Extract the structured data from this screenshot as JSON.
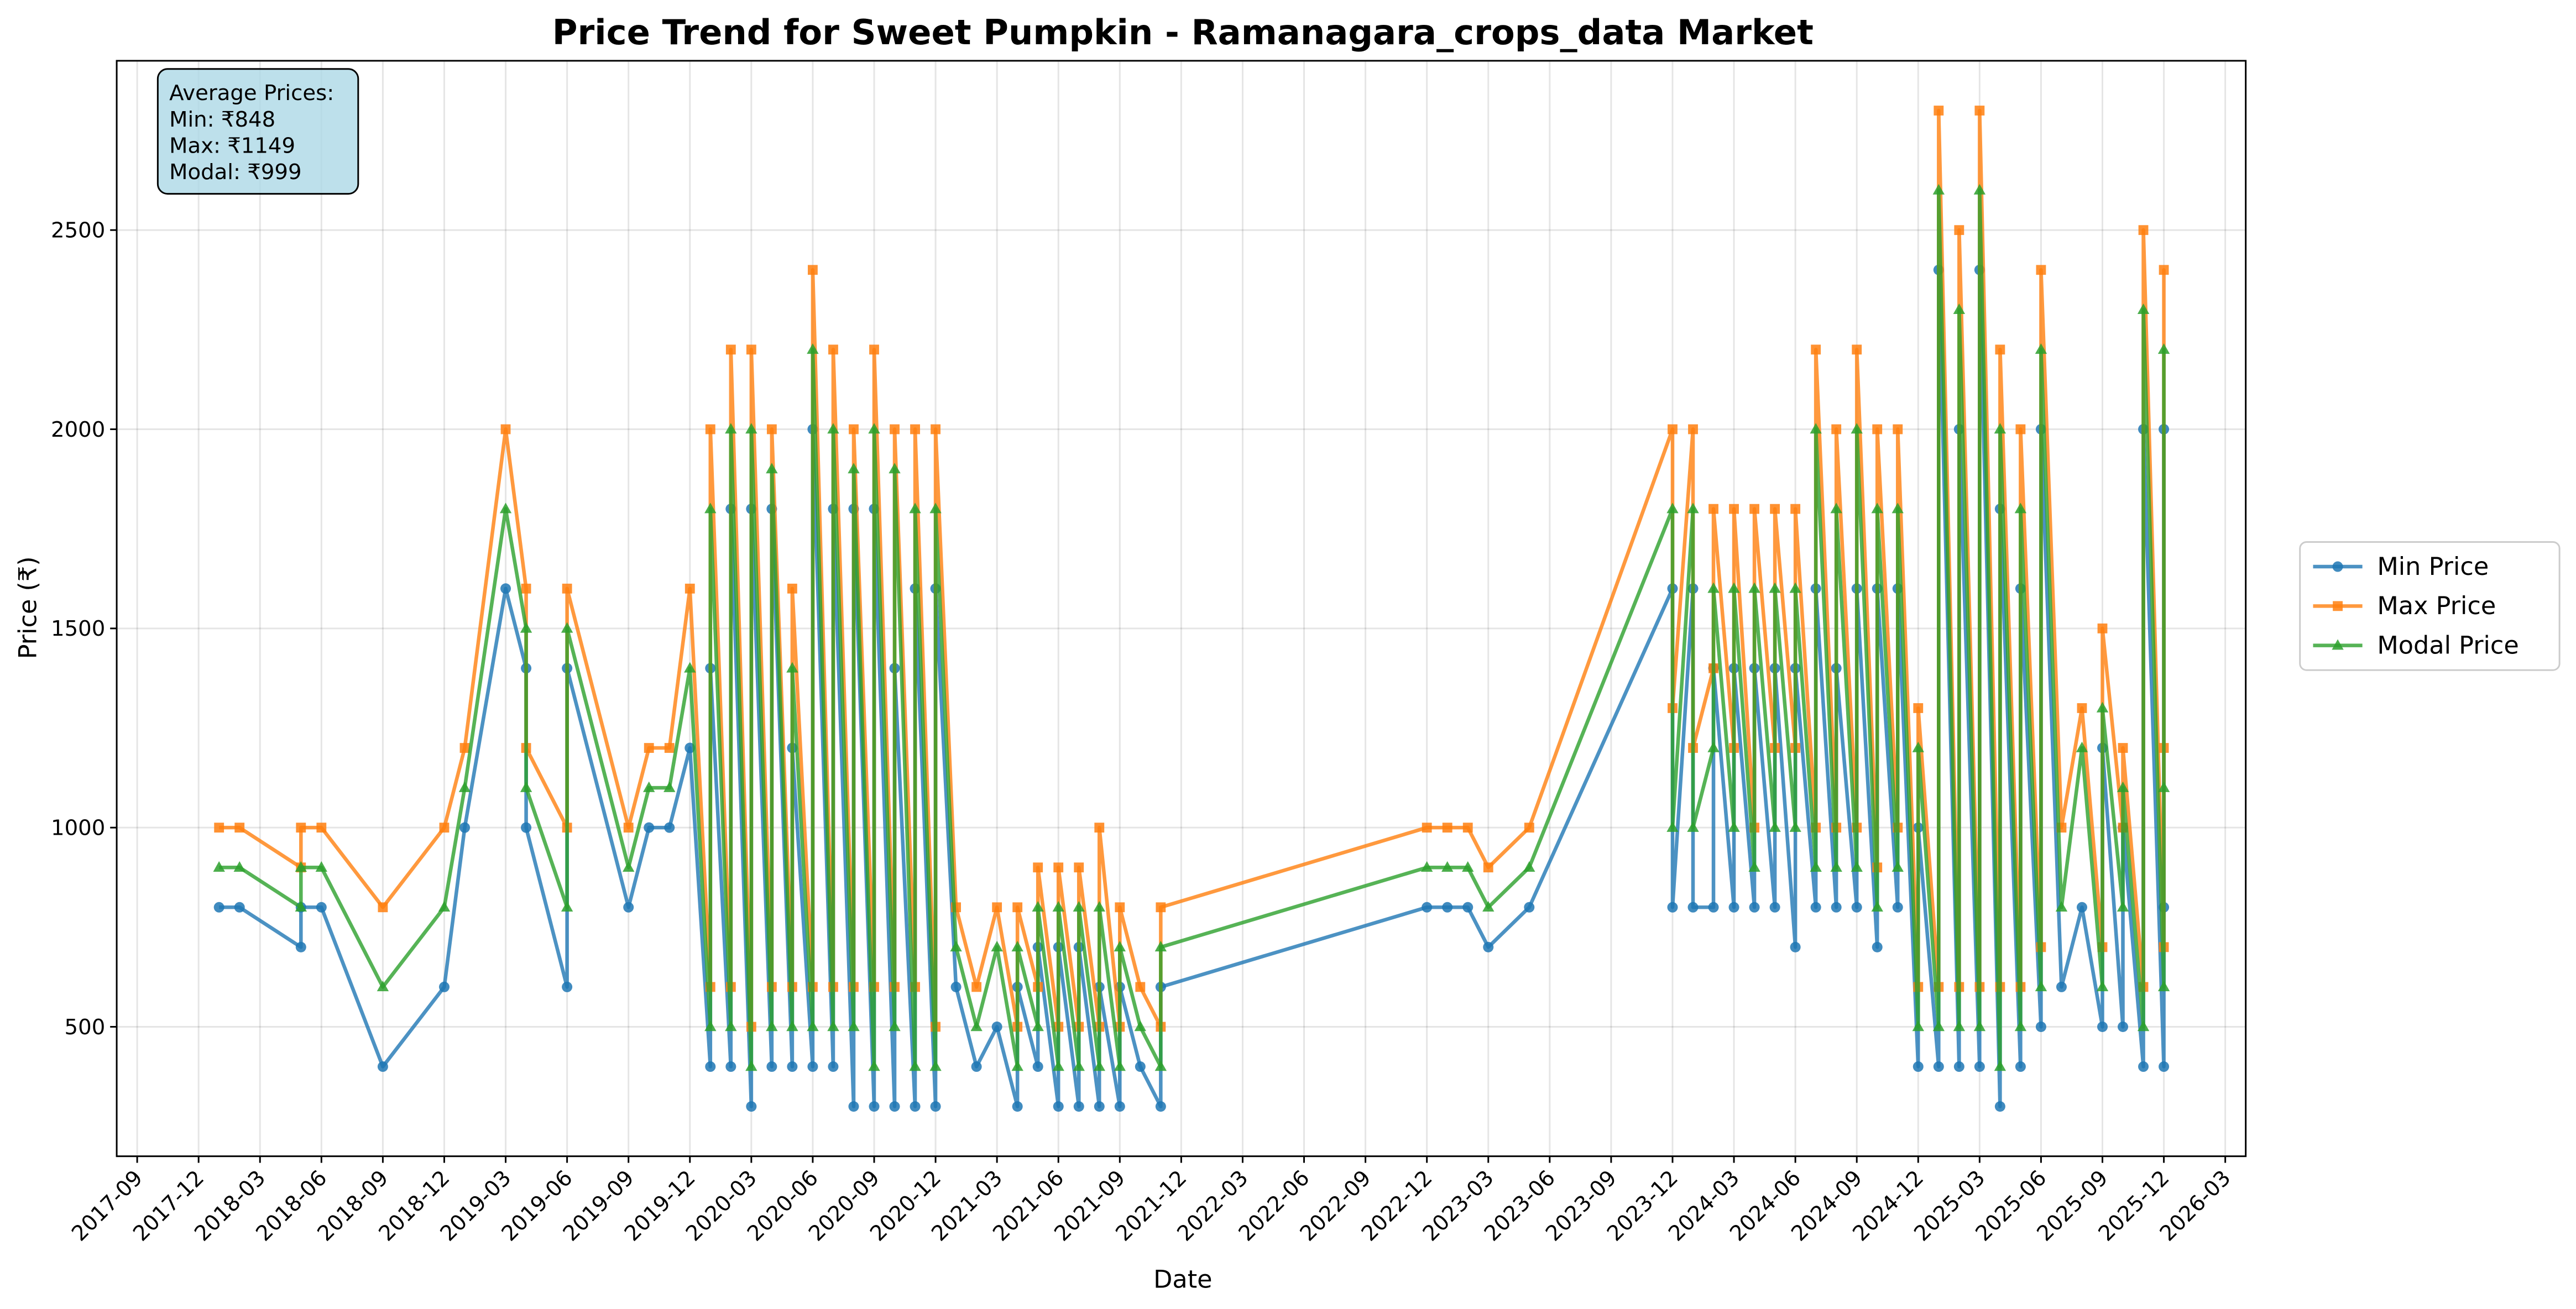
{
  "chart_data": {
    "type": "line",
    "title": "Price Trend for Sweet Pumpkin - Ramanagara_crops_data Market",
    "x_label": "Date",
    "y_label": "Price (₹)",
    "annotation": [
      "Average Prices:",
      "Min: ₹848",
      "Max: ₹1149",
      "Modal: ₹999"
    ],
    "grid": true,
    "legend": "outside right",
    "xlim": [
      "2017-08",
      "2026-04"
    ],
    "xticks": [
      "2017-09",
      "2017-12",
      "2018-03",
      "2018-06",
      "2018-09",
      "2018-12",
      "2019-03",
      "2019-06",
      "2019-09",
      "2019-12",
      "2020-03",
      "2020-06",
      "2020-09",
      "2020-12",
      "2021-03",
      "2021-06",
      "2021-09",
      "2021-12",
      "2022-03",
      "2022-06",
      "2022-09",
      "2022-12",
      "2023-03",
      "2023-06",
      "2023-09",
      "2023-12",
      "2024-03",
      "2024-06",
      "2024-09",
      "2024-12",
      "2025-03",
      "2025-06",
      "2025-09",
      "2025-12",
      "2026-03"
    ],
    "ylim": [
      175,
      2925
    ],
    "yticks": [
      500,
      1000,
      1500,
      2000,
      2500
    ],
    "x": [
      "2018-01",
      "2018-02",
      "2018-05",
      "2018-05",
      "2018-06",
      "2018-09",
      "2018-12",
      "2019-01",
      "2019-03",
      "2019-04",
      "2019-04",
      "2019-06",
      "2019-06",
      "2019-09",
      "2019-10",
      "2019-11",
      "2019-12",
      "2020-01",
      "2020-01",
      "2020-02",
      "2020-02",
      "2020-03",
      "2020-03",
      "2020-04",
      "2020-04",
      "2020-05",
      "2020-05",
      "2020-06",
      "2020-06",
      "2020-07",
      "2020-07",
      "2020-08",
      "2020-08",
      "2020-09",
      "2020-09",
      "2020-10",
      "2020-10",
      "2020-11",
      "2020-11",
      "2020-12",
      "2020-12",
      "2021-01",
      "2021-02",
      "2021-03",
      "2021-04",
      "2021-04",
      "2021-05",
      "2021-05",
      "2021-06",
      "2021-06",
      "2021-07",
      "2021-07",
      "2021-08",
      "2021-08",
      "2021-09",
      "2021-09",
      "2021-10",
      "2021-11",
      "2021-11",
      "2022-12",
      "2023-01",
      "2023-02",
      "2023-03",
      "2023-05",
      "2023-12",
      "2023-12",
      "2024-01",
      "2024-01",
      "2024-02",
      "2024-02",
      "2024-03",
      "2024-03",
      "2024-04",
      "2024-04",
      "2024-05",
      "2024-05",
      "2024-06",
      "2024-06",
      "2024-07",
      "2024-07",
      "2024-08",
      "2024-08",
      "2024-09",
      "2024-09",
      "2024-10",
      "2024-10",
      "2024-11",
      "2024-11",
      "2024-12",
      "2024-12",
      "2025-01",
      "2025-01",
      "2025-02",
      "2025-02",
      "2025-03",
      "2025-03",
      "2025-04",
      "2025-04",
      "2025-05",
      "2025-05",
      "2025-06",
      "2025-06",
      "2025-07",
      "2025-08",
      "2025-09",
      "2025-09",
      "2025-10",
      "2025-10",
      "2025-11",
      "2025-11",
      "2025-12",
      "2025-12",
      "2025-12"
    ],
    "series": [
      {
        "name": "Min Price",
        "color": "#1f77b4",
        "marker": "circle",
        "values": [
          800,
          800,
          700,
          800,
          800,
          400,
          600,
          1000,
          1600,
          1400,
          1000,
          600,
          1400,
          800,
          1000,
          1000,
          1200,
          400,
          1400,
          400,
          1800,
          300,
          1800,
          400,
          1800,
          400,
          1200,
          400,
          2000,
          400,
          1800,
          300,
          1800,
          300,
          1800,
          300,
          1400,
          300,
          1600,
          300,
          1600,
          600,
          400,
          500,
          300,
          600,
          400,
          700,
          300,
          700,
          300,
          700,
          300,
          600,
          300,
          600,
          400,
          300,
          600,
          800,
          800,
          800,
          700,
          800,
          1600,
          800,
          1600,
          800,
          800,
          1400,
          800,
          1400,
          800,
          1400,
          800,
          1400,
          700,
          1400,
          800,
          1600,
          800,
          1400,
          800,
          1600,
          700,
          1600,
          800,
          1600,
          400,
          1000,
          400,
          2400,
          400,
          2000,
          400,
          2400,
          300,
          1800,
          400,
          1600,
          500,
          2000,
          600,
          800,
          500,
          1200,
          500,
          1000,
          400,
          2000,
          400,
          2000,
          800
        ]
      },
      {
        "name": "Max Price",
        "color": "#ff7f0e",
        "marker": "square",
        "values": [
          1000,
          1000,
          900,
          1000,
          1000,
          800,
          1000,
          1200,
          2000,
          1600,
          1200,
          1000,
          1600,
          1000,
          1200,
          1200,
          1600,
          600,
          2000,
          600,
          2200,
          500,
          2200,
          600,
          2000,
          600,
          1600,
          600,
          2400,
          600,
          2200,
          600,
          2000,
          600,
          2200,
          600,
          2000,
          600,
          2000,
          500,
          2000,
          800,
          600,
          800,
          500,
          800,
          600,
          900,
          500,
          900,
          500,
          900,
          500,
          1000,
          500,
          800,
          600,
          500,
          800,
          1000,
          1000,
          1000,
          900,
          1000,
          2000,
          1300,
          2000,
          1200,
          1400,
          1800,
          1200,
          1800,
          1000,
          1800,
          1200,
          1800,
          1200,
          1800,
          1000,
          2200,
          1000,
          2000,
          1000,
          2200,
          900,
          2000,
          1000,
          2000,
          600,
          1300,
          600,
          2800,
          600,
          2500,
          600,
          2800,
          600,
          2200,
          600,
          2000,
          700,
          2400,
          1000,
          1300,
          700,
          1500,
          1000,
          1200,
          600,
          2500,
          700,
          2400,
          1200
        ]
      },
      {
        "name": "Modal Price",
        "color": "#2ca02c",
        "marker": "triangle",
        "values": [
          900,
          900,
          800,
          900,
          900,
          600,
          800,
          1100,
          1800,
          1500,
          1100,
          800,
          1500,
          900,
          1100,
          1100,
          1400,
          500,
          1800,
          500,
          2000,
          400,
          2000,
          500,
          1900,
          500,
          1400,
          500,
          2200,
          500,
          2000,
          500,
          1900,
          400,
          2000,
          500,
          1900,
          400,
          1800,
          400,
          1800,
          700,
          500,
          700,
          400,
          700,
          500,
          800,
          400,
          800,
          400,
          800,
          400,
          800,
          400,
          700,
          500,
          400,
          700,
          900,
          900,
          900,
          800,
          900,
          1800,
          1000,
          1800,
          1000,
          1200,
          1600,
          1000,
          1600,
          900,
          1600,
          1000,
          1600,
          1000,
          1600,
          900,
          2000,
          900,
          1800,
          900,
          2000,
          800,
          1800,
          900,
          1800,
          500,
          1200,
          500,
          2600,
          500,
          2300,
          500,
          2600,
          400,
          2000,
          500,
          1800,
          600,
          2200,
          800,
          1200,
          600,
          1300,
          800,
          1100,
          500,
          2300,
          600,
          2200,
          1100
        ]
      }
    ]
  }
}
